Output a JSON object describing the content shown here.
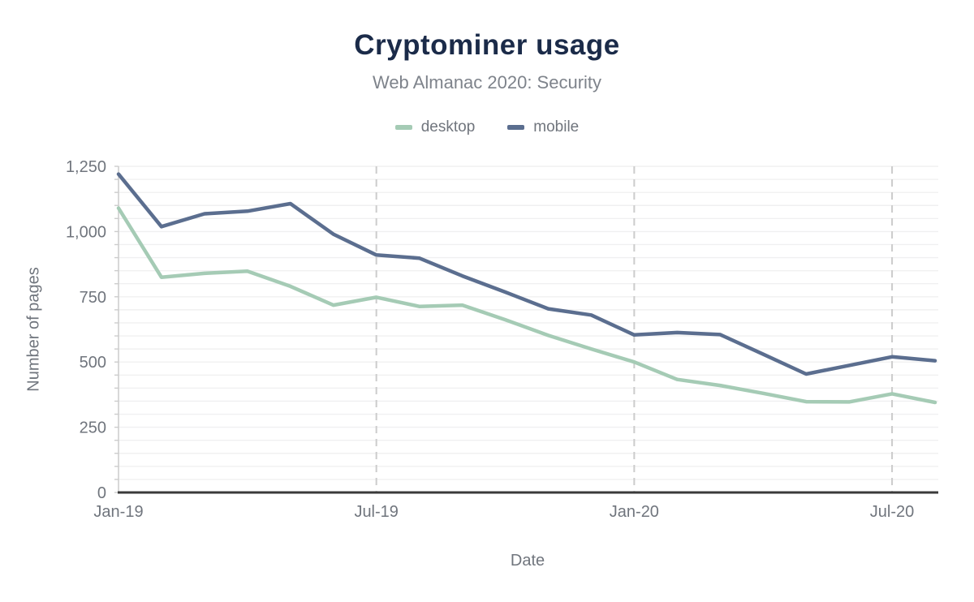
{
  "header": {
    "title": "Cryptominer usage",
    "subtitle": "Web Almanac 2020: Security"
  },
  "legend": [
    {
      "label": "desktop",
      "color": "#a5cbb5"
    },
    {
      "label": "mobile",
      "color": "#5b6e8f"
    }
  ],
  "colors": {
    "title": "#1b2b49",
    "subtitle": "#7e838b",
    "axis_text": "#70757d",
    "desktop_line": "#a5cbb5",
    "mobile_line": "#5b6e8f",
    "x_axis_line": "#3a3a3a",
    "y_axis_line": "#cccccc",
    "h_gridline": "#f0f0f1",
    "v_gridline": "#cccccc"
  },
  "chart_data": {
    "type": "line",
    "title": "Cryptominer usage",
    "subtitle": "Web Almanac 2020: Security",
    "xlabel": "Date",
    "ylabel": "Number of pages",
    "x": [
      "Jan-19",
      "Feb-19",
      "Mar-19",
      "Apr-19",
      "May-19",
      "Jun-19",
      "Jul-19",
      "Aug-19",
      "Sep-19",
      "Oct-19",
      "Nov-19",
      "Dec-19",
      "Jan-20",
      "Feb-20",
      "Mar-20",
      "Apr-20",
      "May-20",
      "Jun-20",
      "Jul-20",
      "Aug-20"
    ],
    "series": [
      {
        "name": "desktop",
        "color": "#a5cbb5",
        "values": [
          1090,
          825,
          840,
          848,
          790,
          718,
          748,
          713,
          718,
          662,
          602,
          550,
          500,
          433,
          410,
          380,
          348,
          347,
          378,
          345
        ]
      },
      {
        "name": "mobile",
        "color": "#5b6e8f",
        "values": [
          1220,
          1019,
          1068,
          1078,
          1107,
          990,
          910,
          898,
          830,
          768,
          704,
          680,
          604,
          613,
          605,
          530,
          454,
          487,
          520,
          505
        ]
      }
    ],
    "ylim": [
      0,
      1250
    ],
    "yticks": [
      0,
      250,
      500,
      750,
      1000,
      1250
    ],
    "ytick_labels": [
      "0",
      "250",
      "500",
      "750",
      "1,000",
      "1,250"
    ],
    "xtick_indices": [
      0,
      6,
      12,
      18
    ],
    "vgrid_indices": [
      6,
      12,
      18
    ],
    "minor_grid_step": 50,
    "grid": "horizontal minor gridlines on; dashed vertical gridlines at Jul-19, Jan-20, Jul-20",
    "legend_position": "top-center"
  }
}
